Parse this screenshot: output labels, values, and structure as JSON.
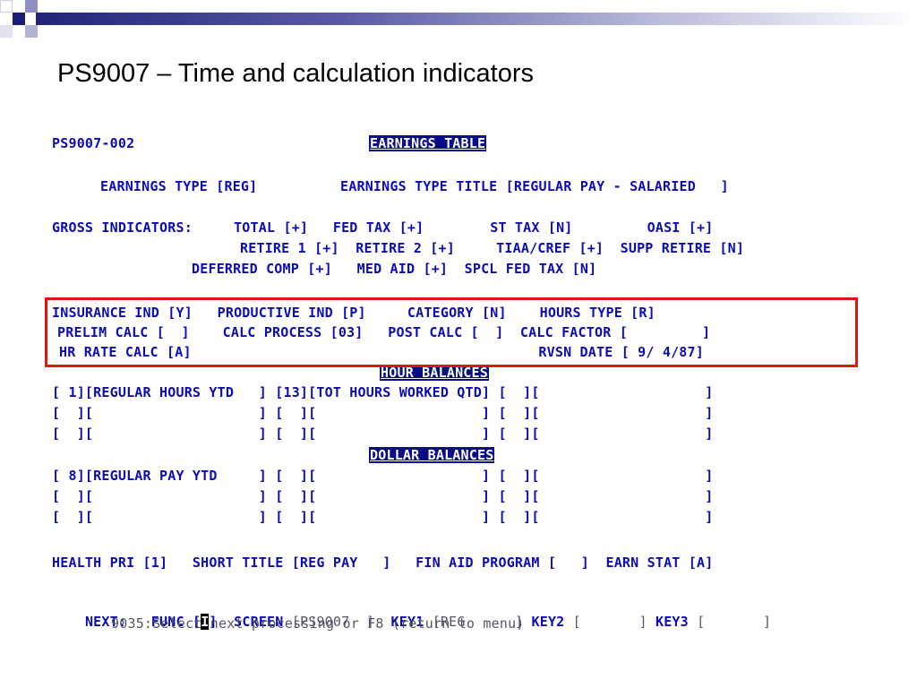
{
  "slide": {
    "title": "PS9007 – Time and calculation indicators"
  },
  "screen": {
    "screen_id": "PS9007-002",
    "table_title": "EARNINGS TABLE",
    "earnings_type": "EARNINGS TYPE [REG]",
    "earnings_type_title": "EARNINGS TYPE TITLE [REGULAR PAY - SALARIED   ]",
    "gross_1": "GROSS INDICATORS:     TOTAL [+]   FED TAX [+]        ST TAX [N]         OASI [+]",
    "gross_2": "RETIRE 1 [+]  RETIRE 2 [+]     TIAA/CREF [+]  SUPP RETIRE [N]",
    "gross_3": "DEFERRED COMP [+]   MED AID [+]  SPCL FED TAX [N]",
    "ins_1": "INSURANCE IND [Y]   PRODUCTIVE IND [P]     CATEGORY [N]    HOURS TYPE [R]",
    "ins_2": "PRELIM CALC [  ]    CALC PROCESS [03]   POST CALC [  ]  CALC FACTOR [         ]",
    "ins_3": "HR RATE CALC [A]                                          RVSN DATE [ 9/ 4/87]",
    "hour_balances_label": "HOUR BALANCES",
    "hour_rows": [
      "[ 1][REGULAR HOURS YTD   ] [13][TOT HOURS WORKED QTD] [  ][                    ]",
      "[  ][                    ] [  ][                    ] [  ][                    ]",
      "[  ][                    ] [  ][                    ] [  ][                    ]"
    ],
    "dollar_balances_label": "DOLLAR BALANCES",
    "dollar_rows": [
      "[ 8][REGULAR PAY YTD     ] [  ][                    ] [  ][                    ]",
      "[  ][                    ] [  ][                    ] [  ][                    ]",
      "[  ][                    ] [  ][                    ] [  ][                    ]"
    ],
    "health_line": "HEALTH PRI [1]   SHORT TITLE [REG PAY   ]   FIN AID PROGRAM [   ]  EARN STAT [A]",
    "next_label": "NEXT:",
    "func_label": "FUNC [",
    "func_value": "I",
    "func_close": "]",
    "screen_label": "SCREEN",
    "screen_value": "[PS9007  ]",
    "key1_label": "KEY1",
    "key1_value": "[REG      ]",
    "key2_label": "KEY2",
    "key2_value": "[       ]",
    "key3_label": "KEY3",
    "key3_value": "[       ]",
    "message": "9035:Select next processing or F8 (return to menu)"
  },
  "colors": {
    "terminal_text": "#0c0cb5",
    "highlight_bg": "#0a0a8c",
    "callout_border": "#e01515"
  }
}
